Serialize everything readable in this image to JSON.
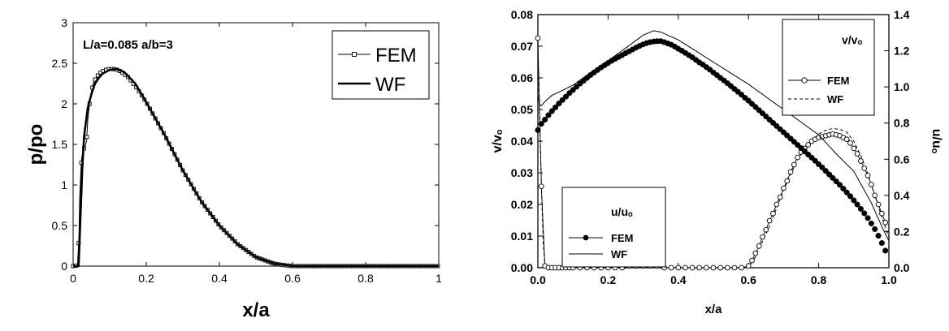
{
  "chart_data": [
    {
      "type": "line",
      "annotation": "L/a=0.085    a/b=3",
      "xlabel": "x/a",
      "ylabel": "p/po",
      "xlim": [
        0,
        1
      ],
      "ylim": [
        0,
        3
      ],
      "x_ticks": [
        0,
        0.2,
        0.4,
        0.6,
        0.8,
        1
      ],
      "x_tick_labels": [
        "0",
        "0.2",
        "0.4",
        "0.6",
        "0.8",
        "1"
      ],
      "y_ticks": [
        0,
        0.5,
        1,
        1.5,
        2,
        2.5,
        3
      ],
      "y_tick_labels": [
        "0",
        "0.5",
        "1",
        "1.5",
        "2",
        "2.5",
        "3"
      ],
      "grid": false,
      "legend": "top-right",
      "series": [
        {
          "name": "FEM",
          "style": "thin line with open square markers",
          "x": [
            0,
            0.006,
            0.012,
            0.016,
            0.018,
            0.02,
            0.022,
            0.024,
            0.026,
            0.028,
            0.03,
            0.033,
            0.037,
            0.04,
            0.045,
            0.05,
            0.055,
            0.06,
            0.065,
            0.07,
            0.08,
            0.09,
            0.1,
            0.11,
            0.12,
            0.13,
            0.15,
            0.17,
            0.2,
            0.25,
            0.3,
            0.35,
            0.4,
            0.45,
            0.5,
            0.55,
            0.58,
            0.6,
            0.65,
            0.7,
            0.75,
            0.8,
            0.85,
            0.9,
            0.95,
            1
          ],
          "y": [
            0,
            0,
            0.02,
            0.37,
            0.85,
            1.05,
            1.25,
            1.35,
            1.38,
            1.42,
            1.45,
            1.48,
            1.55,
            1.8,
            2.0,
            2.15,
            2.25,
            2.3,
            2.33,
            2.37,
            2.4,
            2.42,
            2.43,
            2.43,
            2.42,
            2.4,
            2.33,
            2.22,
            2.02,
            1.62,
            1.18,
            0.8,
            0.5,
            0.27,
            0.11,
            0.03,
            0.01,
            0,
            0,
            0,
            0,
            0,
            0,
            0,
            0,
            0
          ]
        },
        {
          "name": "WF",
          "style": "thick solid line",
          "x": [
            0,
            0.015,
            0.02,
            0.025,
            0.03,
            0.04,
            0.05,
            0.06,
            0.07,
            0.08,
            0.1,
            0.12,
            0.14,
            0.17,
            0.2,
            0.25,
            0.3,
            0.35,
            0.4,
            0.45,
            0.5,
            0.55,
            0.6,
            0.7,
            0.8,
            0.9,
            1
          ],
          "y": [
            0,
            0,
            0.6,
            1.2,
            1.6,
            1.95,
            2.12,
            2.25,
            2.32,
            2.37,
            2.42,
            2.43,
            2.39,
            2.25,
            2.02,
            1.62,
            1.18,
            0.8,
            0.5,
            0.27,
            0.11,
            0.03,
            0,
            0,
            0,
            0,
            0
          ]
        }
      ]
    },
    {
      "type": "line",
      "xlabel": "x/a",
      "ylabel": "v/vₒ",
      "y2label": "u/uₒ",
      "xlim": [
        0,
        1
      ],
      "ylim": [
        0,
        0.08
      ],
      "y2lim": [
        0,
        1.4
      ],
      "x_ticks": [
        0,
        0.2,
        0.4,
        0.6,
        0.8,
        1
      ],
      "x_tick_labels": [
        "0.0",
        "0.2",
        "0.4",
        "0.6",
        "0.8",
        "1.0"
      ],
      "y_ticks": [
        0,
        0.01,
        0.02,
        0.03,
        0.04,
        0.05,
        0.06,
        0.07,
        0.08
      ],
      "y_tick_labels": [
        "0.00",
        "0.01",
        "0.02",
        "0.03",
        "0.04",
        "0.05",
        "0.06",
        "0.07",
        "0.08"
      ],
      "y2_ticks": [
        0,
        0.2,
        0.4,
        0.6,
        0.8,
        1,
        1.2,
        1.4
      ],
      "y2_tick_labels": [
        "0.0",
        "0.2",
        "0.4",
        "0.6",
        "0.8",
        "1.0",
        "1.2",
        "1.4"
      ],
      "grid": false,
      "legends": [
        {
          "title": "v/vₒ",
          "placement": "top-right",
          "entries": [
            "FEM",
            "WF"
          ]
        },
        {
          "title": "u/uₒ",
          "placement": "bottom-left",
          "entries": [
            "FEM",
            "WF"
          ]
        }
      ],
      "series": [
        {
          "name": "FEM",
          "group": "u/uₒ",
          "axis": "left",
          "style": "filled circle markers",
          "x": [
            0,
            0.01,
            0.02,
            0.03,
            0.04,
            0.05,
            0.06,
            0.07,
            0.08,
            0.09,
            0.1,
            0.11,
            0.12,
            0.13,
            0.14,
            0.15,
            0.16,
            0.17,
            0.18,
            0.19,
            0.2,
            0.21,
            0.22,
            0.23,
            0.24,
            0.25,
            0.26,
            0.27,
            0.28,
            0.29,
            0.3,
            0.31,
            0.32,
            0.33,
            0.34,
            0.35,
            0.36,
            0.37,
            0.38,
            0.39,
            0.4,
            0.41,
            0.42,
            0.43,
            0.44,
            0.45,
            0.46,
            0.47,
            0.48,
            0.49,
            0.5,
            0.51,
            0.52,
            0.53,
            0.54,
            0.55,
            0.56,
            0.57,
            0.58,
            0.59,
            0.6,
            0.61,
            0.62,
            0.63,
            0.64,
            0.65,
            0.66,
            0.67,
            0.68,
            0.69,
            0.7,
            0.71,
            0.72,
            0.73,
            0.74,
            0.75,
            0.76,
            0.77,
            0.78,
            0.79,
            0.8,
            0.81,
            0.82,
            0.83,
            0.84,
            0.85,
            0.86,
            0.87,
            0.88,
            0.89,
            0.9,
            0.91,
            0.92,
            0.93,
            0.94,
            0.95,
            0.96,
            0.97,
            0.98,
            0.99
          ],
          "y": [
            0.0435,
            0.0455,
            0.0468,
            0.0482,
            0.0495,
            0.0507,
            0.0519,
            0.053,
            0.0541,
            0.0552,
            0.0562,
            0.0572,
            0.0582,
            0.0591,
            0.06,
            0.0609,
            0.0617,
            0.0625,
            0.0633,
            0.064,
            0.0647,
            0.0654,
            0.066,
            0.0666,
            0.0672,
            0.0678,
            0.0684,
            0.069,
            0.0696,
            0.0701,
            0.0706,
            0.071,
            0.0713,
            0.0715,
            0.0716,
            0.0716,
            0.0713,
            0.0709,
            0.0705,
            0.0699,
            0.0692,
            0.0686,
            0.0679,
            0.0672,
            0.0665,
            0.0657,
            0.0649,
            0.0642,
            0.0634,
            0.0626,
            0.0617,
            0.0609,
            0.06,
            0.0592,
            0.0583,
            0.0574,
            0.0565,
            0.0556,
            0.0547,
            0.0537,
            0.0528,
            0.0518,
            0.0508,
            0.0498,
            0.0488,
            0.0478,
            0.0468,
            0.0458,
            0.0448,
            0.0438,
            0.0428,
            0.0418,
            0.0408,
            0.0398,
            0.0388,
            0.0378,
            0.0368,
            0.0358,
            0.0348,
            0.0338,
            0.0327,
            0.0317,
            0.0306,
            0.0295,
            0.0284,
            0.0273,
            0.0262,
            0.025,
            0.0238,
            0.0226,
            0.0213,
            0.02,
            0.0186,
            0.0172,
            0.0157,
            0.014,
            0.0122,
            0.0101,
            0.0078,
            0.0054
          ]
        },
        {
          "name": "WF",
          "group": "u/uₒ",
          "axis": "left",
          "style": "thin solid line",
          "x": [
            0,
            0.003,
            0.006,
            0.01,
            0.02,
            0.04,
            0.06,
            0.08,
            0.1,
            0.15,
            0.2,
            0.25,
            0.3,
            0.33,
            0.35,
            0.4,
            0.45,
            0.5,
            0.55,
            0.6,
            0.65,
            0.7,
            0.75,
            0.8,
            0.85,
            0.9,
            0.95,
            0.98,
            1.0
          ],
          "y": [
            0.0545,
            0.0528,
            0.0515,
            0.0512,
            0.0525,
            0.0545,
            0.0555,
            0.0566,
            0.0577,
            0.0617,
            0.0654,
            0.0694,
            0.0735,
            0.0749,
            0.0745,
            0.072,
            0.0685,
            0.065,
            0.0615,
            0.058,
            0.054,
            0.05,
            0.046,
            0.042,
            0.036,
            0.0305,
            0.0205,
            0.013,
            0.0085
          ]
        },
        {
          "name": "FEM",
          "group": "v/vₒ",
          "axis": "right",
          "style": "thin line with open circle markers",
          "x": [
            0,
            0.01,
            0.02,
            0.03,
            0.04,
            0.05,
            0.06,
            0.07,
            0.08,
            0.09,
            0.1,
            0.12,
            0.14,
            0.16,
            0.18,
            0.2,
            0.22,
            0.24,
            0.26,
            0.28,
            0.3,
            0.32,
            0.34,
            0.36,
            0.38,
            0.4,
            0.42,
            0.44,
            0.46,
            0.48,
            0.5,
            0.52,
            0.54,
            0.56,
            0.58,
            0.6,
            0.61,
            0.62,
            0.63,
            0.64,
            0.65,
            0.66,
            0.67,
            0.68,
            0.69,
            0.7,
            0.71,
            0.72,
            0.73,
            0.74,
            0.75,
            0.76,
            0.77,
            0.78,
            0.79,
            0.8,
            0.81,
            0.82,
            0.83,
            0.84,
            0.85,
            0.86,
            0.87,
            0.88,
            0.89,
            0.9,
            0.91,
            0.92,
            0.93,
            0.94,
            0.95,
            0.96,
            0.97,
            0.98,
            0.99
          ],
          "y": [
            1.27,
            0.45,
            0.01,
            0,
            0,
            0,
            0,
            0,
            0,
            0,
            0,
            0,
            0,
            0,
            0,
            0,
            0,
            0,
            0.01,
            0.01,
            0.01,
            0.01,
            0.01,
            0,
            0,
            0,
            0,
            0,
            0,
            0,
            0,
            0,
            0,
            0,
            0,
            0.01,
            0.04,
            0.08,
            0.12,
            0.17,
            0.21,
            0.26,
            0.3,
            0.35,
            0.39,
            0.44,
            0.48,
            0.53,
            0.57,
            0.61,
            0.64,
            0.66,
            0.68,
            0.7,
            0.71,
            0.72,
            0.725,
            0.73,
            0.735,
            0.74,
            0.735,
            0.73,
            0.72,
            0.71,
            0.69,
            0.66,
            0.63,
            0.59,
            0.55,
            0.51,
            0.46,
            0.4,
            0.35,
            0.3,
            0.25
          ]
        },
        {
          "name": "WF",
          "group": "v/vₒ",
          "axis": "right",
          "style": "dashed line",
          "x": [
            0,
            0.005,
            0.01,
            0.015,
            0.02,
            0.03,
            0.5,
            0.6,
            0.62,
            0.66,
            0.7,
            0.74,
            0.78,
            0.8,
            0.82,
            0.84,
            0.86,
            0.88,
            0.9,
            0.92,
            0.94,
            0.96,
            0.98,
            1.0
          ],
          "y": [
            1.15,
            0.85,
            0.45,
            0.15,
            0.01,
            0,
            0,
            0,
            0.06,
            0.23,
            0.43,
            0.6,
            0.7,
            0.74,
            0.76,
            0.77,
            0.765,
            0.75,
            0.7,
            0.62,
            0.52,
            0.4,
            0.28,
            0.17
          ]
        }
      ]
    }
  ]
}
